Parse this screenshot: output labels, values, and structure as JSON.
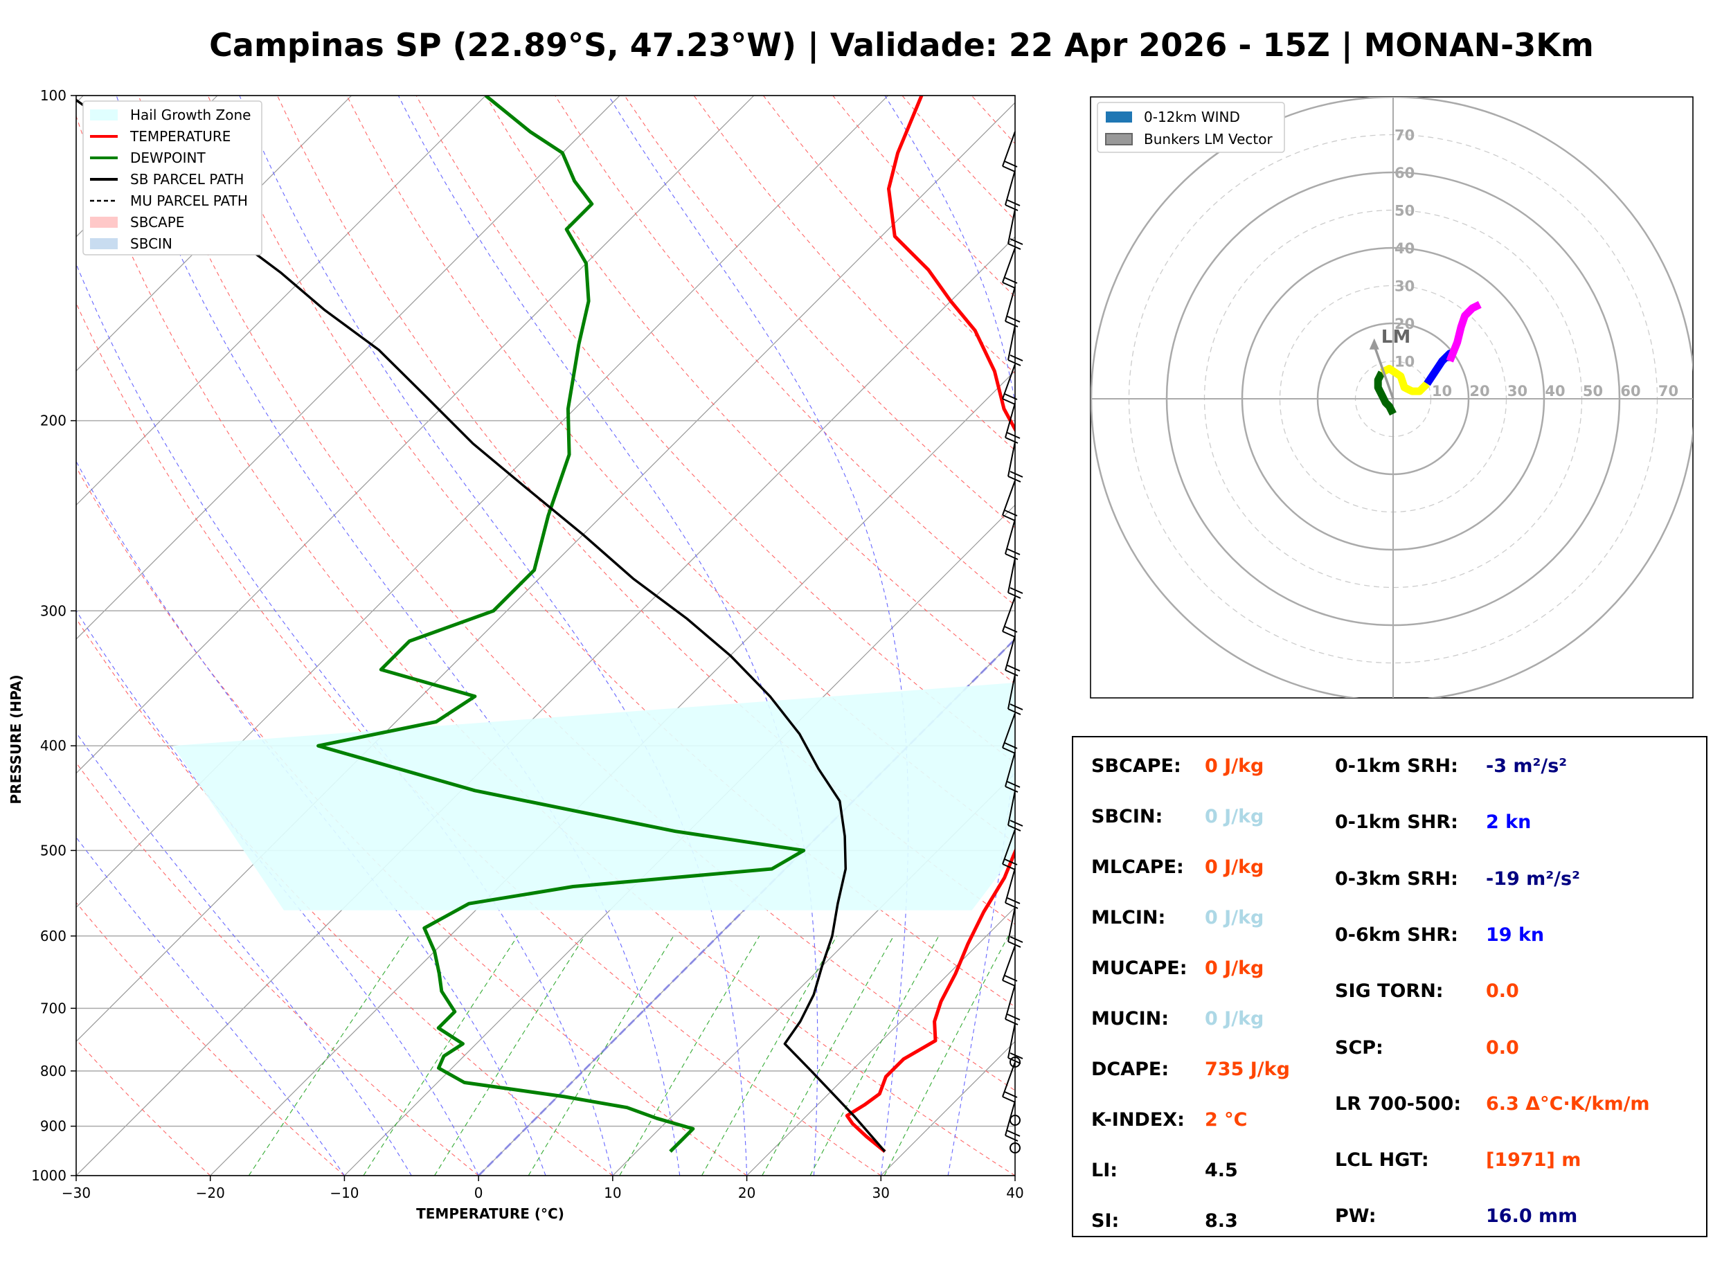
{
  "title": "Campinas SP (22.89°S, 47.23°W) | Validade: 22 Apr 2026 - 15Z | MONAN-3Km",
  "skewt": {
    "xlabel": "TEMPERATURE (°C)",
    "ylabel": "PRESSURE (HPA)",
    "x_ticks": [
      "−30",
      "−20",
      "−10",
      "0",
      "10",
      "20",
      "30",
      "40"
    ],
    "y_ticks": [
      "100",
      "200",
      "300",
      "400",
      "500",
      "600",
      "700",
      "800",
      "900",
      "1000"
    ],
    "legend": [
      {
        "label": "Hail Growth Zone",
        "color": "#e0ffff",
        "kind": "patch"
      },
      {
        "label": "TEMPERATURE",
        "color": "#ff0000",
        "kind": "line"
      },
      {
        "label": "DEWPOINT",
        "color": "#008000",
        "kind": "line"
      },
      {
        "label": "SB PARCEL PATH",
        "color": "#000000",
        "kind": "line"
      },
      {
        "label": "MU PARCEL PATH",
        "color": "#000000",
        "kind": "dash"
      },
      {
        "label": "SBCAPE",
        "color": "#ffc8c8",
        "kind": "patch"
      },
      {
        "label": "SBCIN",
        "color": "#c8dcf0",
        "kind": "patch"
      }
    ]
  },
  "hodograph": {
    "legend": [
      {
        "label": "0-12km WIND",
        "color": "#1f77b4"
      },
      {
        "label": "Bunkers LM Vector",
        "color": "#999999"
      }
    ],
    "ring_labels": [
      "10",
      "20",
      "30",
      "40",
      "50",
      "60",
      "70"
    ],
    "lm_label": "LM"
  },
  "params": {
    "left": [
      {
        "label": "SBCAPE:",
        "value": "0 J/kg",
        "color": "#ff4500"
      },
      {
        "label": "SBCIN:",
        "value": "0 J/kg",
        "color": "#add8e6"
      },
      {
        "label": "MLCAPE:",
        "value": "0 J/kg",
        "color": "#ff4500"
      },
      {
        "label": "MLCIN:",
        "value": "0 J/kg",
        "color": "#add8e6"
      },
      {
        "label": "MUCAPE:",
        "value": "0 J/kg",
        "color": "#ff4500"
      },
      {
        "label": "MUCIN:",
        "value": "0 J/kg",
        "color": "#add8e6"
      },
      {
        "label": "DCAPE:",
        "value": "735 J/kg",
        "color": "#ff4500"
      },
      {
        "label": "K-INDEX:",
        "value": "2 °C",
        "color": "#ff4500"
      },
      {
        "label": "LI:",
        "value": "4.5",
        "color": "#000000"
      },
      {
        "label": "SI:",
        "value": "8.3",
        "color": "#000000"
      }
    ],
    "right": [
      {
        "label": "0-1km SRH:",
        "value": "-3 m²/s²",
        "color": "#000080"
      },
      {
        "label": "0-1km SHR:",
        "value": "2 kn",
        "color": "#0000ff"
      },
      {
        "label": "0-3km SRH:",
        "value": "-19 m²/s²",
        "color": "#000080"
      },
      {
        "label": "0-6km SHR:",
        "value": "19 kn",
        "color": "#0000ff"
      },
      {
        "label": "SIG TORN:",
        "value": "0.0",
        "color": "#ff4500"
      },
      {
        "label": "SCP:",
        "value": "0.0",
        "color": "#ff4500"
      },
      {
        "label": "LR 700-500:",
        "value": "6.3 Δ°C·K/km/m",
        "color": "#ff4500"
      },
      {
        "label": "LCL HGT:",
        "value": "[1971] m",
        "color": "#ff4500"
      },
      {
        "label": "PW:",
        "value": "16.0 mm",
        "color": "#000080"
      }
    ]
  },
  "chart_data": [
    {
      "type": "line",
      "title": "Campinas SP (22.89°S, 47.23°W) | Validade: 22 Apr 2026 - 15Z | MONAN-3Km",
      "xlabel": "TEMPERATURE (°C)",
      "ylabel": "PRESSURE (HPA)",
      "xlim": [
        -30,
        40
      ],
      "ylim": [
        1000,
        100
      ],
      "y_scale": "log",
      "skew_deg": 45,
      "grid": true,
      "legend_position": "top-left",
      "series": [
        {
          "name": "TEMPERATURE",
          "color": "#ff0000",
          "points": [
            [
              28.5,
              950
            ],
            [
              26,
              920
            ],
            [
              24,
              895
            ],
            [
              23,
              880
            ],
            [
              23.5,
              860
            ],
            [
              23.8,
              840
            ],
            [
              23,
              810
            ],
            [
              23,
              780
            ],
            [
              24,
              750
            ],
            [
              22.5,
              720
            ],
            [
              21.5,
              690
            ],
            [
              20.5,
              650
            ],
            [
              19.2,
              610
            ],
            [
              18,
              570
            ],
            [
              17,
              530
            ],
            [
              16,
              505
            ],
            [
              15,
              480
            ],
            [
              14,
              455
            ],
            [
              13.5,
              435
            ],
            [
              14,
              415
            ],
            [
              13.5,
              395
            ],
            [
              11.5,
              370
            ],
            [
              9,
              345
            ],
            [
              6.5,
              320
            ],
            [
              4,
              300
            ],
            [
              -1,
              270
            ],
            [
              -6,
              245
            ],
            [
              -10,
              225
            ],
            [
              -14,
              210
            ],
            [
              -18,
              195
            ],
            [
              -21.5,
              180
            ],
            [
              -26,
              165
            ],
            [
              -30,
              155
            ],
            [
              -34,
              145
            ],
            [
              -39,
              135
            ],
            [
              -43,
              122
            ],
            [
              -45,
              113
            ],
            [
              -47.5,
              100
            ]
          ]
        },
        {
          "name": "DEWPOINT",
          "color": "#008000",
          "points": [
            [
              12.5,
              950
            ],
            [
              12.5,
              930
            ],
            [
              12.5,
              905
            ],
            [
              9,
              885
            ],
            [
              6,
              865
            ],
            [
              0.5,
              845
            ],
            [
              -8,
              820
            ],
            [
              -11,
              795
            ],
            [
              -11.5,
              775
            ],
            [
              -11,
              755
            ],
            [
              -14,
              730
            ],
            [
              -14,
              705
            ],
            [
              -16.5,
              675
            ],
            [
              -18,
              650
            ],
            [
              -20,
              620
            ],
            [
              -22.5,
              590
            ],
            [
              -21,
              560
            ],
            [
              -14.5,
              540
            ],
            [
              -1,
              520
            ],
            [
              0,
              500
            ],
            [
              -11,
              480
            ],
            [
              -29,
              440
            ],
            [
              -44,
              400
            ],
            [
              -37,
              380
            ],
            [
              -36,
              360
            ],
            [
              -45,
              340
            ],
            [
              -45,
              320
            ],
            [
              -41,
              300
            ],
            [
              -41,
              275
            ],
            [
              -44,
              245
            ],
            [
              -47,
              215
            ],
            [
              -50.5,
              195
            ],
            [
              -54.5,
              170
            ],
            [
              -57,
              155
            ],
            [
              -60,
              143
            ],
            [
              -64,
              133
            ],
            [
              -64,
              126
            ],
            [
              -67,
              120
            ],
            [
              -70,
              113
            ],
            [
              -74,
              108
            ],
            [
              -80,
              100
            ]
          ]
        },
        {
          "name": "SB PARCEL PATH",
          "color": "#000000",
          "points": [
            [
              28.5,
              950
            ],
            [
              23.5,
              880
            ],
            [
              17,
              800
            ],
            [
              13,
              755
            ],
            [
              12.5,
              720
            ],
            [
              11.5,
              680
            ],
            [
              10,
              640
            ],
            [
              8.5,
              600
            ],
            [
              6.5,
              560
            ],
            [
              4.5,
              520
            ],
            [
              2,
              485
            ],
            [
              -1,
              450
            ],
            [
              -5,
              420
            ],
            [
              -9,
              390
            ],
            [
              -14,
              360
            ],
            [
              -20,
              330
            ],
            [
              -26,
              305
            ],
            [
              -33,
              280
            ],
            [
              -40,
              255
            ],
            [
              -48,
              230
            ],
            [
              -55,
              210
            ],
            [
              -62,
              190
            ],
            [
              -69,
              172
            ],
            [
              -76,
              158
            ],
            [
              -82,
              146
            ],
            [
              -89,
              134
            ],
            [
              -96,
              122
            ],
            [
              -103,
              110
            ],
            [
              -111,
              100
            ]
          ]
        }
      ]
    },
    {
      "type": "line",
      "title": "",
      "xlabel": "",
      "ylabel": "",
      "ring_max": 80,
      "ring_step": 10,
      "units": "kn",
      "legend_position": "top-left",
      "series": [
        {
          "name": "0-12km WIND",
          "color": "#006400",
          "points": [
            [
              0,
              -4
            ],
            [
              -1,
              -2
            ],
            [
              -2,
              -1
            ],
            [
              -3,
              1
            ],
            [
              -4,
              3
            ],
            [
              -4,
              5
            ],
            [
              -3,
              7
            ]
          ]
        },
        {
          "name": "",
          "color": "#ffff00",
          "points": [
            [
              -3,
              7
            ],
            [
              -1,
              8
            ],
            [
              2,
              6
            ],
            [
              3,
              3
            ],
            [
              5,
              2
            ],
            [
              7,
              2
            ],
            [
              9,
              4
            ]
          ]
        },
        {
          "name": "",
          "color": "#0000ff",
          "points": [
            [
              9,
              4
            ],
            [
              11,
              7
            ],
            [
              13,
              10
            ],
            [
              15,
              12
            ],
            [
              15,
              10
            ]
          ]
        },
        {
          "name": "",
          "color": "#ff00ff",
          "points": [
            [
              15,
              10
            ],
            [
              17,
              15
            ],
            [
              18,
              19
            ],
            [
              19,
              22
            ],
            [
              21,
              24
            ],
            [
              23,
              25
            ]
          ]
        },
        {
          "name": "Bunkers LM Vector",
          "color": "#999999",
          "points": [
            [
              0,
              0
            ],
            [
              -5,
              16
            ]
          ]
        }
      ]
    }
  ]
}
